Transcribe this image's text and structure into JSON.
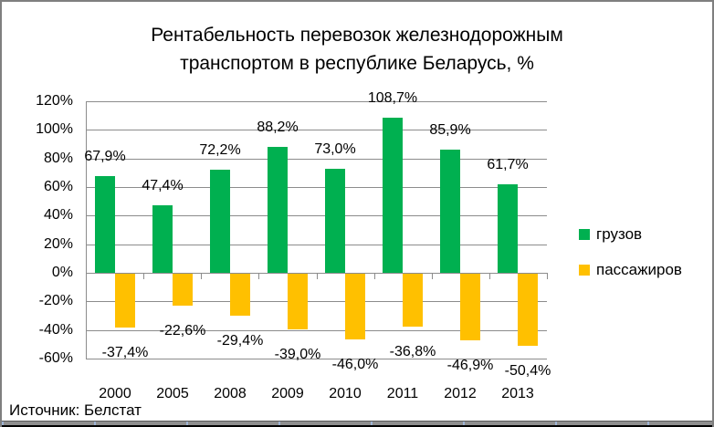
{
  "window": {
    "source_note": "Источник: Белстат"
  },
  "chart_data": {
    "type": "bar",
    "title": "Рентабельность перевозок железнодорожным транспортом в республике Беларусь, %",
    "title_lines": [
      "Рентабельность перевозок железнодорожным",
      "транспортом в республике Беларусь, %"
    ],
    "categories": [
      "2000",
      "2005",
      "2008",
      "2009",
      "2010",
      "2011",
      "2012",
      "2013"
    ],
    "series": [
      {
        "name": "грузов",
        "slug": "freight",
        "color": "#00B050",
        "values": [
          67.9,
          47.4,
          72.2,
          88.2,
          73.0,
          108.7,
          85.9,
          61.7
        ],
        "labels": [
          "67,9%",
          "47,4%",
          "72,2%",
          "88,2%",
          "73,0%",
          "108,7%",
          "85,9%",
          "61,7%"
        ]
      },
      {
        "name": "пассажиров",
        "slug": "passengers",
        "color": "#FFC000",
        "values": [
          -37.4,
          -22.6,
          -29.4,
          -39.0,
          -46.0,
          -36.8,
          -46.9,
          -50.4
        ],
        "labels": [
          "-37,4%",
          "-22,6%",
          "-29,4%",
          "-39,0%",
          "-46,0%",
          "-36,8%",
          "-46,9%",
          "-50,4%"
        ]
      }
    ],
    "y_axis": {
      "min": -60,
      "max": 120,
      "step": 20,
      "tick_labels": [
        "120%",
        "100%",
        "80%",
        "60%",
        "40%",
        "20%",
        "0%",
        "-20%",
        "-40%",
        "-60%"
      ]
    },
    "grid": true,
    "legend_position": "right"
  }
}
